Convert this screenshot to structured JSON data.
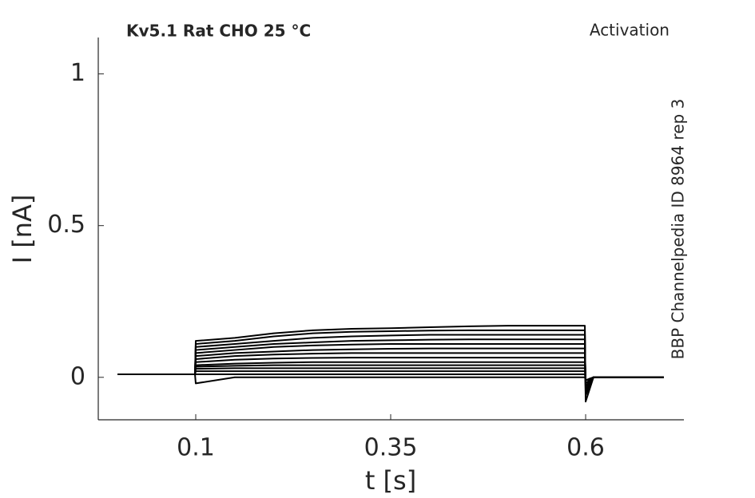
{
  "chart_data": {
    "type": "line",
    "title": "Kv5.1  Rat  CHO  25 °C",
    "subtitle": "Activation",
    "annotation": "BBP Channelpedia ID 8964 rep 3",
    "xlabel": "t [s]",
    "ylabel": "I [nA]",
    "xlim": [
      -0.025,
      0.726
    ],
    "ylim": [
      -0.14,
      1.12
    ],
    "xticks": [
      0.1,
      0.35,
      0.6
    ],
    "yticks": [
      0,
      0.5,
      1
    ],
    "x": [
      0,
      0.099,
      0.1,
      0.15,
      0.2,
      0.25,
      0.3,
      0.35,
      0.4,
      0.45,
      0.5,
      0.55,
      0.599,
      0.6,
      0.61,
      0.7
    ],
    "series": [
      {
        "color": "#000000",
        "values": [
          0.01,
          0.01,
          0.12,
          0.13,
          0.145,
          0.155,
          0.16,
          0.162,
          0.165,
          0.168,
          0.17,
          0.17,
          0.17,
          -0.08,
          0,
          0
        ]
      },
      {
        "color": "#000000",
        "values": [
          0.01,
          0.01,
          0.11,
          0.12,
          0.135,
          0.145,
          0.15,
          0.152,
          0.154,
          0.155,
          0.155,
          0.155,
          0.155,
          -0.06,
          0,
          0
        ]
      },
      {
        "color": "#000000",
        "values": [
          0.01,
          0.01,
          0.1,
          0.11,
          0.12,
          0.13,
          0.135,
          0.138,
          0.14,
          0.14,
          0.14,
          0.14,
          0.14,
          -0.05,
          0,
          0
        ]
      },
      {
        "color": "#000000",
        "values": [
          0.01,
          0.01,
          0.09,
          0.1,
          0.11,
          0.115,
          0.12,
          0.122,
          0.124,
          0.125,
          0.125,
          0.125,
          0.125,
          -0.04,
          0,
          0
        ]
      },
      {
        "color": "#000000",
        "values": [
          0.01,
          0.01,
          0.08,
          0.09,
          0.1,
          0.105,
          0.108,
          0.11,
          0.11,
          0.11,
          0.11,
          0.11,
          0.11,
          -0.03,
          0,
          0
        ]
      },
      {
        "color": "#000000",
        "values": [
          0.01,
          0.01,
          0.07,
          0.08,
          0.085,
          0.09,
          0.092,
          0.094,
          0.095,
          0.095,
          0.095,
          0.095,
          0.095,
          -0.03,
          0,
          0
        ]
      },
      {
        "color": "#000000",
        "values": [
          0.01,
          0.01,
          0.06,
          0.07,
          0.075,
          0.078,
          0.08,
          0.08,
          0.08,
          0.08,
          0.08,
          0.08,
          0.08,
          -0.02,
          0,
          0
        ]
      },
      {
        "color": "#000000",
        "values": [
          0.01,
          0.01,
          0.05,
          0.058,
          0.062,
          0.064,
          0.065,
          0.065,
          0.065,
          0.065,
          0.065,
          0.065,
          0.065,
          -0.02,
          0,
          0
        ]
      },
      {
        "color": "#000000",
        "values": [
          0.01,
          0.01,
          0.04,
          0.045,
          0.048,
          0.05,
          0.05,
          0.05,
          0.05,
          0.05,
          0.05,
          0.05,
          0.05,
          -0.02,
          0,
          0
        ]
      },
      {
        "color": "#000000",
        "values": [
          0.01,
          0.01,
          0.035,
          0.038,
          0.04,
          0.04,
          0.04,
          0.04,
          0.04,
          0.04,
          0.04,
          0.04,
          0.04,
          -0.01,
          0,
          0
        ]
      },
      {
        "color": "#000000",
        "values": [
          0.01,
          0.01,
          0.028,
          0.03,
          0.03,
          0.03,
          0.03,
          0.03,
          0.03,
          0.03,
          0.03,
          0.03,
          0.03,
          -0.01,
          0,
          0
        ]
      },
      {
        "color": "#000000",
        "values": [
          0.01,
          0.01,
          0.02,
          0.02,
          0.02,
          0.02,
          0.02,
          0.02,
          0.02,
          0.02,
          0.02,
          0.02,
          0.02,
          -0.01,
          0,
          0
        ]
      },
      {
        "color": "#000000",
        "values": [
          0.01,
          0.01,
          0.01,
          0.01,
          0.01,
          0.01,
          0.01,
          0.01,
          0.01,
          0.01,
          0.01,
          0.01,
          0.01,
          -0.01,
          0,
          0
        ]
      },
      {
        "color": "#000000",
        "values": [
          0.01,
          0.01,
          -0.02,
          0,
          0,
          0,
          0,
          0,
          0,
          0,
          0,
          0,
          0,
          -0.01,
          0,
          0
        ]
      }
    ]
  }
}
